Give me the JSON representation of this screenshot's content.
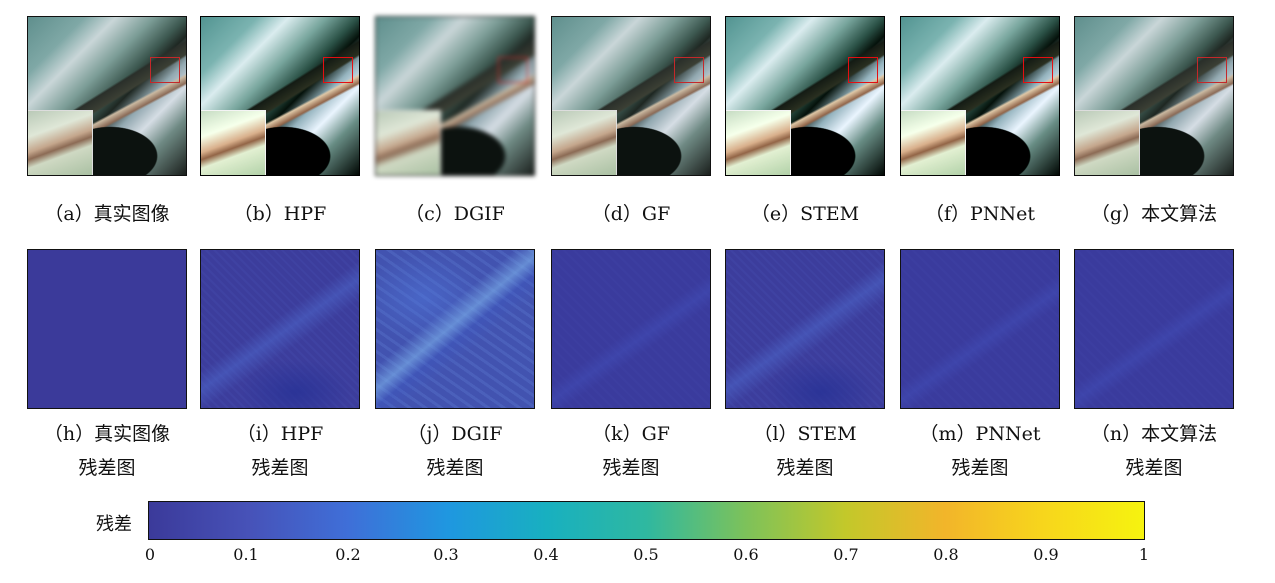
{
  "top_row_labels": [
    "（a）真实图像",
    "（b）HPF",
    "（c）DGIF",
    "（d）GF",
    "（e）STEM",
    "（f）PNNet",
    "（g）本文算法"
  ],
  "bottom_row_labels": [
    "（h）真实图像",
    "（i）HPF",
    "（j）DGIF",
    "（k）GF",
    "（l）STEM",
    "（m）PNNet",
    "（n）本文算法"
  ],
  "residual_suffix": "残差图",
  "colorbar": {
    "title": "残差",
    "ticks": [
      "0",
      "0.1",
      "0.2",
      "0.3",
      "0.4",
      "0.5",
      "0.6",
      "0.7",
      "0.8",
      "0.9",
      "1"
    ],
    "colors": [
      "#3b3a9a",
      "#4752b8",
      "#3f6fd8",
      "#1f97e0",
      "#18b0c0",
      "#2fb8a0",
      "#7dc25a",
      "#c3c82a",
      "#f2b52a",
      "#f7d61c",
      "#f6f30f"
    ]
  }
}
